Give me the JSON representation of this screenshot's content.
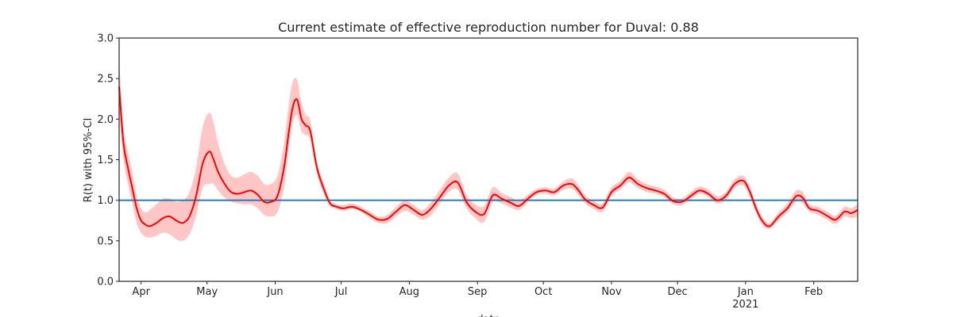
{
  "chart_data": {
    "type": "line",
    "title": "Current estimate of effective reproduction number for Duval: 0.88",
    "ylabel": "R(t) with 95%-CI",
    "xlabel": "date",
    "ylim": [
      0,
      3.0
    ],
    "xlim": [
      "2020-03-22",
      "2021-02-21"
    ],
    "y_ticks": [
      "0.0",
      "0.5",
      "1.0",
      "1.5",
      "2.0",
      "2.5",
      "3.0"
    ],
    "x_ticks": [
      {
        "date": "2020-04-01",
        "label": "Apr",
        "sublabel": ""
      },
      {
        "date": "2020-05-01",
        "label": "May",
        "sublabel": ""
      },
      {
        "date": "2020-06-01",
        "label": "Jun",
        "sublabel": ""
      },
      {
        "date": "2020-07-01",
        "label": "Jul",
        "sublabel": ""
      },
      {
        "date": "2020-08-01",
        "label": "Aug",
        "sublabel": ""
      },
      {
        "date": "2020-09-01",
        "label": "Sep",
        "sublabel": ""
      },
      {
        "date": "2020-10-01",
        "label": "Oct",
        "sublabel": ""
      },
      {
        "date": "2020-11-01",
        "label": "Nov",
        "sublabel": ""
      },
      {
        "date": "2020-12-01",
        "label": "Dec",
        "sublabel": ""
      },
      {
        "date": "2021-01-01",
        "label": "Jan",
        "sublabel": "2021"
      },
      {
        "date": "2021-02-01",
        "label": "Feb",
        "sublabel": ""
      }
    ],
    "reference_line": {
      "y": 1.0,
      "color": "#1f77b4"
    },
    "grid": false,
    "colors": {
      "estimate": "#ff0000",
      "ci_band": "#ffb3b3",
      "reference": "#1f77b4"
    },
    "series": [
      {
        "x": [
          "2020-03-22",
          "2020-03-24",
          "2020-03-26",
          "2020-03-28",
          "2020-03-30",
          "2020-04-01",
          "2020-04-03",
          "2020-04-05",
          "2020-04-08",
          "2020-04-11",
          "2020-04-14",
          "2020-04-17",
          "2020-04-20",
          "2020-04-23",
          "2020-04-26",
          "2020-04-29",
          "2020-05-02",
          "2020-05-04",
          "2020-05-06",
          "2020-05-09",
          "2020-05-12",
          "2020-05-15",
          "2020-05-18",
          "2020-05-21",
          "2020-05-24",
          "2020-05-27",
          "2020-05-30",
          "2020-06-02",
          "2020-06-05",
          "2020-06-07",
          "2020-06-09",
          "2020-06-11",
          "2020-06-13",
          "2020-06-15",
          "2020-06-17",
          "2020-06-20",
          "2020-06-23",
          "2020-06-26",
          "2020-06-29",
          "2020-07-02",
          "2020-07-06",
          "2020-07-10",
          "2020-07-14",
          "2020-07-18",
          "2020-07-22",
          "2020-07-26",
          "2020-07-30",
          "2020-08-03",
          "2020-08-07",
          "2020-08-11",
          "2020-08-15",
          "2020-08-19",
          "2020-08-23",
          "2020-08-27",
          "2020-08-31",
          "2020-09-04",
          "2020-09-08",
          "2020-09-12",
          "2020-09-16",
          "2020-09-20",
          "2020-09-24",
          "2020-09-28",
          "2020-10-02",
          "2020-10-06",
          "2020-10-10",
          "2020-10-14",
          "2020-10-17",
          "2020-10-20",
          "2020-10-24",
          "2020-10-28",
          "2020-11-01",
          "2020-11-05",
          "2020-11-09",
          "2020-11-13",
          "2020-11-17",
          "2020-11-21",
          "2020-11-25",
          "2020-11-29",
          "2020-12-03",
          "2020-12-07",
          "2020-12-11",
          "2020-12-15",
          "2020-12-19",
          "2020-12-23",
          "2020-12-27",
          "2020-12-31",
          "2021-01-03",
          "2021-01-06",
          "2021-01-09",
          "2021-01-12",
          "2021-01-16",
          "2021-01-20",
          "2021-01-24",
          "2021-01-27",
          "2021-01-30",
          "2021-02-03",
          "2021-02-07",
          "2021-02-11",
          "2021-02-15",
          "2021-02-18",
          "2021-02-21"
        ],
        "values": [
          2.4,
          1.7,
          1.4,
          1.15,
          0.9,
          0.75,
          0.7,
          0.68,
          0.72,
          0.78,
          0.8,
          0.75,
          0.72,
          0.8,
          1.05,
          1.45,
          1.6,
          1.5,
          1.35,
          1.2,
          1.1,
          1.08,
          1.1,
          1.12,
          1.07,
          0.98,
          0.98,
          1.05,
          1.4,
          1.8,
          2.15,
          2.24,
          2.0,
          1.92,
          1.85,
          1.4,
          1.15,
          0.96,
          0.92,
          0.9,
          0.92,
          0.88,
          0.82,
          0.76,
          0.77,
          0.86,
          0.94,
          0.88,
          0.82,
          0.9,
          1.04,
          1.18,
          1.22,
          0.98,
          0.86,
          0.83,
          1.06,
          1.02,
          0.97,
          0.93,
          1.02,
          1.1,
          1.12,
          1.1,
          1.18,
          1.2,
          1.12,
          1.01,
          0.94,
          0.91,
          1.1,
          1.18,
          1.28,
          1.2,
          1.15,
          1.12,
          1.08,
          0.99,
          0.98,
          1.05,
          1.12,
          1.08,
          1.0,
          1.05,
          1.2,
          1.24,
          1.1,
          0.88,
          0.73,
          0.68,
          0.8,
          0.9,
          1.05,
          1.03,
          0.9,
          0.87,
          0.81,
          0.76,
          0.86,
          0.84,
          0.88
        ],
        "lower": [
          2.1,
          1.5,
          1.2,
          0.95,
          0.72,
          0.6,
          0.55,
          0.54,
          0.56,
          0.6,
          0.58,
          0.52,
          0.5,
          0.58,
          0.8,
          1.15,
          1.2,
          1.2,
          1.12,
          1.03,
          0.98,
          0.96,
          0.95,
          0.95,
          0.9,
          0.82,
          0.8,
          0.85,
          1.15,
          1.6,
          1.95,
          2.05,
          1.85,
          1.8,
          1.75,
          1.33,
          1.08,
          0.93,
          0.89,
          0.87,
          0.89,
          0.86,
          0.78,
          0.72,
          0.72,
          0.8,
          0.87,
          0.82,
          0.76,
          0.82,
          0.96,
          1.1,
          1.13,
          0.9,
          0.78,
          0.73,
          0.98,
          0.96,
          0.91,
          0.88,
          0.98,
          1.07,
          1.08,
          1.06,
          1.13,
          1.14,
          1.06,
          0.96,
          0.89,
          0.86,
          1.05,
          1.13,
          1.22,
          1.15,
          1.1,
          1.08,
          1.04,
          0.95,
          0.94,
          1.01,
          1.08,
          1.04,
          0.96,
          1.0,
          1.15,
          1.18,
          1.04,
          0.83,
          0.68,
          0.65,
          0.75,
          0.85,
          0.98,
          0.96,
          0.86,
          0.82,
          0.76,
          0.71,
          0.8,
          0.78,
          0.8
        ],
        "upper": [
          2.75,
          1.9,
          1.6,
          1.35,
          1.05,
          0.9,
          0.85,
          0.88,
          0.95,
          1.02,
          1.02,
          0.98,
          1.0,
          1.1,
          1.4,
          1.9,
          2.08,
          1.95,
          1.7,
          1.45,
          1.3,
          1.28,
          1.32,
          1.35,
          1.3,
          1.2,
          1.2,
          1.3,
          1.7,
          2.15,
          2.46,
          2.48,
          2.2,
          2.05,
          1.98,
          1.48,
          1.22,
          1.0,
          0.95,
          0.94,
          0.96,
          0.92,
          0.86,
          0.8,
          0.82,
          0.92,
          1.0,
          0.94,
          0.88,
          0.98,
          1.13,
          1.28,
          1.33,
          1.07,
          0.95,
          0.93,
          1.16,
          1.09,
          1.04,
          1.0,
          1.07,
          1.14,
          1.16,
          1.14,
          1.23,
          1.27,
          1.18,
          1.06,
          0.99,
          0.96,
          1.16,
          1.24,
          1.35,
          1.26,
          1.2,
          1.17,
          1.13,
          1.04,
          1.02,
          1.1,
          1.17,
          1.13,
          1.05,
          1.1,
          1.26,
          1.3,
          1.16,
          0.94,
          0.78,
          0.72,
          0.85,
          0.96,
          1.12,
          1.1,
          0.95,
          0.92,
          0.86,
          0.81,
          0.92,
          0.9,
          0.95
        ]
      }
    ]
  }
}
